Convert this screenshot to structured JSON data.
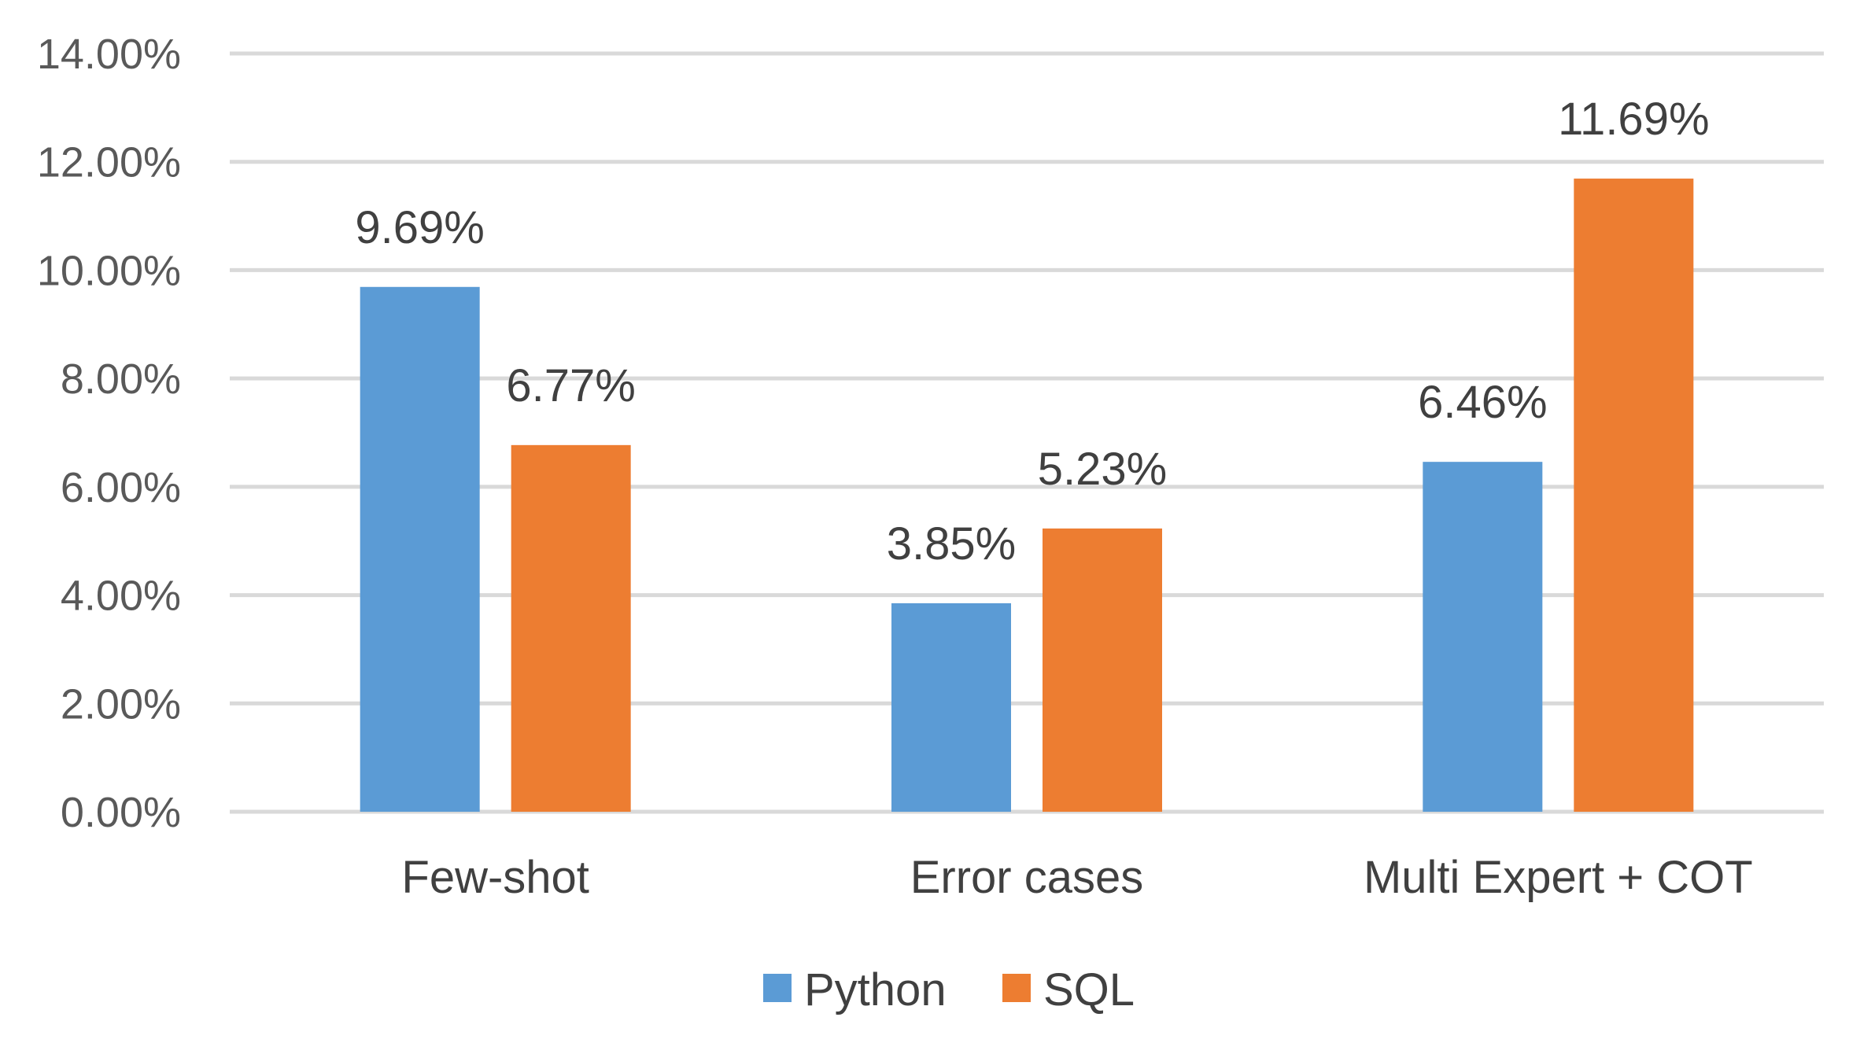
{
  "chart_data": {
    "type": "bar",
    "title": "",
    "xlabel": "",
    "ylabel": "",
    "categories": [
      "Few-shot",
      "Error cases",
      "Multi Expert + COT"
    ],
    "series": [
      {
        "name": "Python",
        "color": "#5b9bd5",
        "values": [
          9.69,
          3.85,
          6.46
        ],
        "labels": [
          "9.69%",
          "3.85%",
          "6.46%"
        ]
      },
      {
        "name": "SQL",
        "color": "#ed7d31",
        "values": [
          6.77,
          5.23,
          11.69
        ],
        "labels": [
          "6.77%",
          "5.23%",
          "11.69%"
        ]
      }
    ],
    "ylim": [
      0,
      14
    ],
    "yticks": [
      0,
      2,
      4,
      6,
      8,
      10,
      12,
      14
    ],
    "ytick_labels": [
      "0.00%",
      "2.00%",
      "4.00%",
      "6.00%",
      "8.00%",
      "10.00%",
      "12.00%",
      "14.00%"
    ],
    "grid": true,
    "legend_position": "bottom-center"
  }
}
